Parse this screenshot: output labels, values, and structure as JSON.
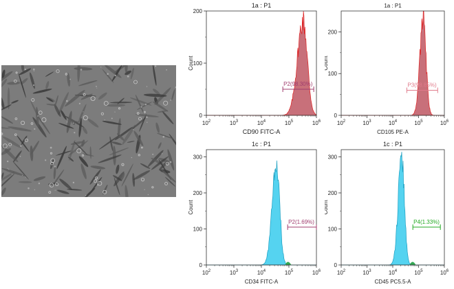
{
  "image": {
    "kind": "phase-contrast micrograph of spindle-shaped adherent cells",
    "bg_color": "#7c7c7c"
  },
  "chart_data": [
    {
      "type": "histogram",
      "title": "1a : P1",
      "xlabel": "CD90 FITC-A",
      "ylabel": "Count",
      "x_scale": "log",
      "xlim": [
        100,
        1000000
      ],
      "ylim": [
        0,
        200
      ],
      "x_ticks": [
        {
          "value": 100,
          "base": "10",
          "exp": "2"
        },
        {
          "value": 1000,
          "base": "10",
          "exp": "3"
        },
        {
          "value": 10000,
          "base": "10",
          "exp": "4"
        },
        {
          "value": 100000,
          "base": "10",
          "exp": "5"
        },
        {
          "value": 1000000,
          "base": "10",
          "exp": "6"
        }
      ],
      "y_ticks": [
        0,
        100,
        200
      ],
      "fill_color": "#c8707a",
      "edge_color": "#e02020",
      "gate": {
        "label": "P2(98.30%)",
        "from": 60000,
        "to": 800000,
        "count_level": 50,
        "color": "#a03c6e"
      },
      "peak": {
        "center_log": 5.52,
        "sigma_left": 0.21,
        "sigma_right": 0.15,
        "height": 182
      }
    },
    {
      "type": "histogram",
      "title": "1a : P1",
      "xlabel": "CD105 PE-A",
      "ylabel": "Count",
      "x_scale": "log",
      "xlim": [
        100,
        1000000
      ],
      "ylim": [
        0,
        250
      ],
      "x_ticks": [
        {
          "value": 100,
          "base": "10",
          "exp": "2"
        },
        {
          "value": 1000,
          "base": "10",
          "exp": "3"
        },
        {
          "value": 10000,
          "base": "10",
          "exp": "4"
        },
        {
          "value": 100000,
          "base": "10",
          "exp": "5"
        },
        {
          "value": 1000000,
          "base": "10",
          "exp": "6"
        }
      ],
      "y_ticks": [
        0,
        100,
        200
      ],
      "fill_color": "#c8707a",
      "edge_color": "#e02020",
      "gate": {
        "label": "P3(98.85%)",
        "from": 35000,
        "to": 550000,
        "count_level": 60,
        "color": "#e07a8a"
      },
      "peak": {
        "center_log": 5.18,
        "sigma_left": 0.13,
        "sigma_right": 0.11,
        "height": 232
      }
    },
    {
      "type": "histogram",
      "title": "1c : P1",
      "xlabel": "CD34 FITC-A",
      "ylabel": "Count",
      "x_scale": "log",
      "xlim": [
        100,
        1000000
      ],
      "ylim": [
        0,
        320
      ],
      "x_ticks": [
        {
          "value": 100,
          "base": "10",
          "exp": "2"
        },
        {
          "value": 1000,
          "base": "10",
          "exp": "3"
        },
        {
          "value": 10000,
          "base": "10",
          "exp": "4"
        },
        {
          "value": 100000,
          "base": "10",
          "exp": "5"
        },
        {
          "value": 1000000,
          "base": "10",
          "exp": "6"
        }
      ],
      "y_ticks": [
        0,
        100,
        200,
        300
      ],
      "fill_color": "#55d3f0",
      "edge_color": "#1a9ec0",
      "gate": {
        "label": "P2(1.69%)",
        "from": 90000,
        "to": 1000000,
        "count_level": 105,
        "color": "#a03c6e"
      },
      "peak": {
        "center_log": 4.54,
        "sigma_left": 0.15,
        "sigma_right": 0.12,
        "height": 295
      }
    },
    {
      "type": "histogram",
      "title": "1c : P1",
      "xlabel": "CD45 PC5.5-A",
      "ylabel": "Count",
      "x_scale": "log",
      "xlim": [
        100,
        1000000
      ],
      "ylim": [
        0,
        320
      ],
      "x_ticks": [
        {
          "value": 100,
          "base": "10",
          "exp": "2"
        },
        {
          "value": 1000,
          "base": "10",
          "exp": "3"
        },
        {
          "value": 10000,
          "base": "10",
          "exp": "4"
        },
        {
          "value": 100000,
          "base": "10",
          "exp": "5"
        },
        {
          "value": 1000000,
          "base": "10",
          "exp": "6"
        }
      ],
      "y_ticks": [
        0,
        100,
        200,
        300
      ],
      "fill_color": "#55d3f0",
      "edge_color": "#1a9ec0",
      "gate": {
        "label": "P4(1.33%)",
        "from": 60000,
        "to": 700000,
        "count_level": 105,
        "color": "#22aa22"
      },
      "peak": {
        "center_log": 4.34,
        "sigma_left": 0.13,
        "sigma_right": 0.11,
        "height": 300
      }
    }
  ]
}
